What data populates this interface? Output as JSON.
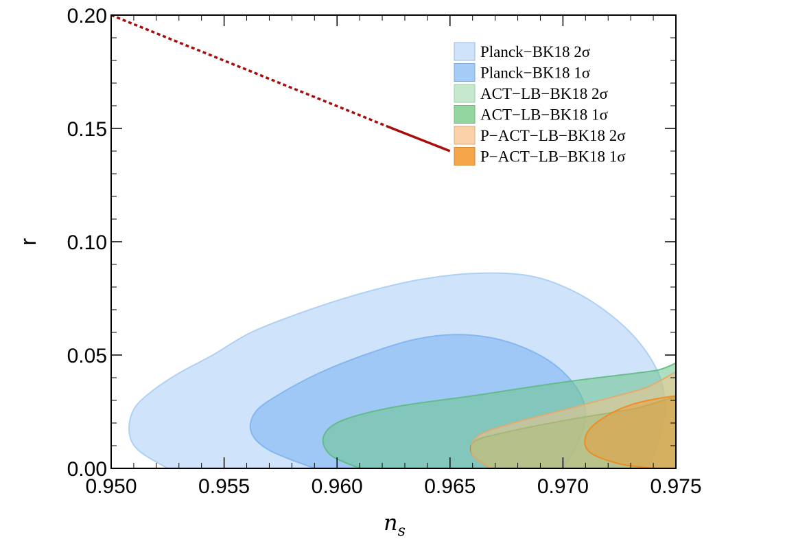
{
  "chart_data": {
    "type": "area",
    "title": "",
    "xlabel": "n",
    "xlabel_subscript": "s",
    "ylabel": "r",
    "xlim": [
      0.95,
      0.975
    ],
    "ylim": [
      0.0,
      0.2
    ],
    "xticks": [
      "0.950",
      "0.955",
      "0.960",
      "0.965",
      "0.970",
      "0.975"
    ],
    "yticks": [
      "0.00",
      "0.05",
      "0.10",
      "0.15",
      "0.20"
    ],
    "grid": false,
    "legend_position": "top-right",
    "regions": [
      {
        "name": "Planck−BK18 2σ",
        "fill": "#cfe3fa",
        "stroke": "#a9cdf3",
        "opacity": 1,
        "points": [
          [
            0.9525,
            0.0
          ],
          [
            0.9512,
            0.008
          ],
          [
            0.9508,
            0.016
          ],
          [
            0.951,
            0.026
          ],
          [
            0.9518,
            0.034
          ],
          [
            0.953,
            0.042
          ],
          [
            0.9545,
            0.05
          ],
          [
            0.9562,
            0.06
          ],
          [
            0.9585,
            0.069
          ],
          [
            0.961,
            0.077
          ],
          [
            0.9635,
            0.083
          ],
          [
            0.966,
            0.086
          ],
          [
            0.9685,
            0.085
          ],
          [
            0.9705,
            0.078
          ],
          [
            0.9722,
            0.067
          ],
          [
            0.9735,
            0.054
          ],
          [
            0.9743,
            0.04
          ],
          [
            0.9745,
            0.026
          ],
          [
            0.9742,
            0.012
          ],
          [
            0.9738,
            0.0
          ]
        ]
      },
      {
        "name": "Planck−BK18 1σ",
        "fill": "#9fc8f6",
        "stroke": "#7fb4ee",
        "opacity": 1,
        "points": [
          [
            0.959,
            0.0
          ],
          [
            0.957,
            0.008
          ],
          [
            0.9562,
            0.016
          ],
          [
            0.9564,
            0.025
          ],
          [
            0.9575,
            0.033
          ],
          [
            0.9592,
            0.042
          ],
          [
            0.9612,
            0.05
          ],
          [
            0.9635,
            0.057
          ],
          [
            0.9655,
            0.059
          ],
          [
            0.9675,
            0.056
          ],
          [
            0.9693,
            0.048
          ],
          [
            0.9705,
            0.037
          ],
          [
            0.971,
            0.025
          ],
          [
            0.9707,
            0.012
          ],
          [
            0.97,
            0.0
          ]
        ]
      },
      {
        "name": "ACT−LB−BK18 2σ",
        "fill": "#6cc48c",
        "stroke": "#5fba80",
        "opacity": 0.55,
        "points": [
          [
            0.961,
            0.0
          ],
          [
            0.9597,
            0.006
          ],
          [
            0.9594,
            0.014
          ],
          [
            0.9602,
            0.021
          ],
          [
            0.9625,
            0.027
          ],
          [
            0.966,
            0.032
          ],
          [
            0.97,
            0.038
          ],
          [
            0.974,
            0.043
          ],
          [
            0.976,
            0.046
          ],
          [
            0.976,
            0.0
          ]
        ]
      },
      {
        "name": "ACT−LB−BK18 1σ",
        "fill": "#55b468",
        "stroke": "#3fa656",
        "opacity": 0.55,
        "points": [
          [
            0.9668,
            0.0
          ],
          [
            0.966,
            0.006
          ],
          [
            0.9661,
            0.012
          ],
          [
            0.9675,
            0.016
          ],
          [
            0.97,
            0.021
          ],
          [
            0.973,
            0.026
          ],
          [
            0.976,
            0.031
          ],
          [
            0.976,
            0.0
          ]
        ]
      },
      {
        "name": "P−ACT−LB−BK18 2σ",
        "fill": "#f3c287",
        "stroke": "#e8a868",
        "opacity": 0.55,
        "points": [
          [
            0.9668,
            0.0
          ],
          [
            0.966,
            0.006
          ],
          [
            0.9662,
            0.014
          ],
          [
            0.9678,
            0.02
          ],
          [
            0.9705,
            0.027
          ],
          [
            0.9735,
            0.035
          ],
          [
            0.976,
            0.043
          ],
          [
            0.976,
            0.0
          ]
        ]
      },
      {
        "name": "P−ACT−LB−BK18 1σ",
        "fill": "#f0962c",
        "stroke": "#f08a1c",
        "opacity": 0.45,
        "points": [
          [
            0.974,
            0.0
          ],
          [
            0.9725,
            0.002
          ],
          [
            0.9712,
            0.007
          ],
          [
            0.971,
            0.014
          ],
          [
            0.9716,
            0.021
          ],
          [
            0.973,
            0.028
          ],
          [
            0.975,
            0.032
          ],
          [
            0.976,
            0.032
          ],
          [
            0.976,
            0.0
          ]
        ]
      }
    ],
    "lines": [
      {
        "style": "dotted",
        "color": "#a80d0d",
        "points": [
          [
            0.95,
            0.2
          ],
          [
            0.9622,
            0.151
          ]
        ]
      },
      {
        "style": "solid",
        "color": "#a80d0d",
        "points": [
          [
            0.9622,
            0.151
          ],
          [
            0.965,
            0.14
          ]
        ]
      }
    ],
    "legend": [
      {
        "label": "Planck−BK18 2σ",
        "color": "#cfe3fa",
        "border": "#9bb8d8"
      },
      {
        "label": "Planck−BK18 1σ",
        "color": "#a4ccf7",
        "border": "#7fa8d6"
      },
      {
        "label": "ACT−LB−BK18 2σ",
        "color": "#c6e9cd",
        "border": "#9fcaa8"
      },
      {
        "label": "ACT−LB−BK18 1σ",
        "color": "#94d6a0",
        "border": "#6fb87d"
      },
      {
        "label": "P−ACT−LB−BK18 2σ",
        "color": "#fbd2a7",
        "border": "#dbab7c"
      },
      {
        "label": "P−ACT−LB−BK18 1σ",
        "color": "#f5a54a",
        "border": "#d1852f"
      }
    ]
  }
}
